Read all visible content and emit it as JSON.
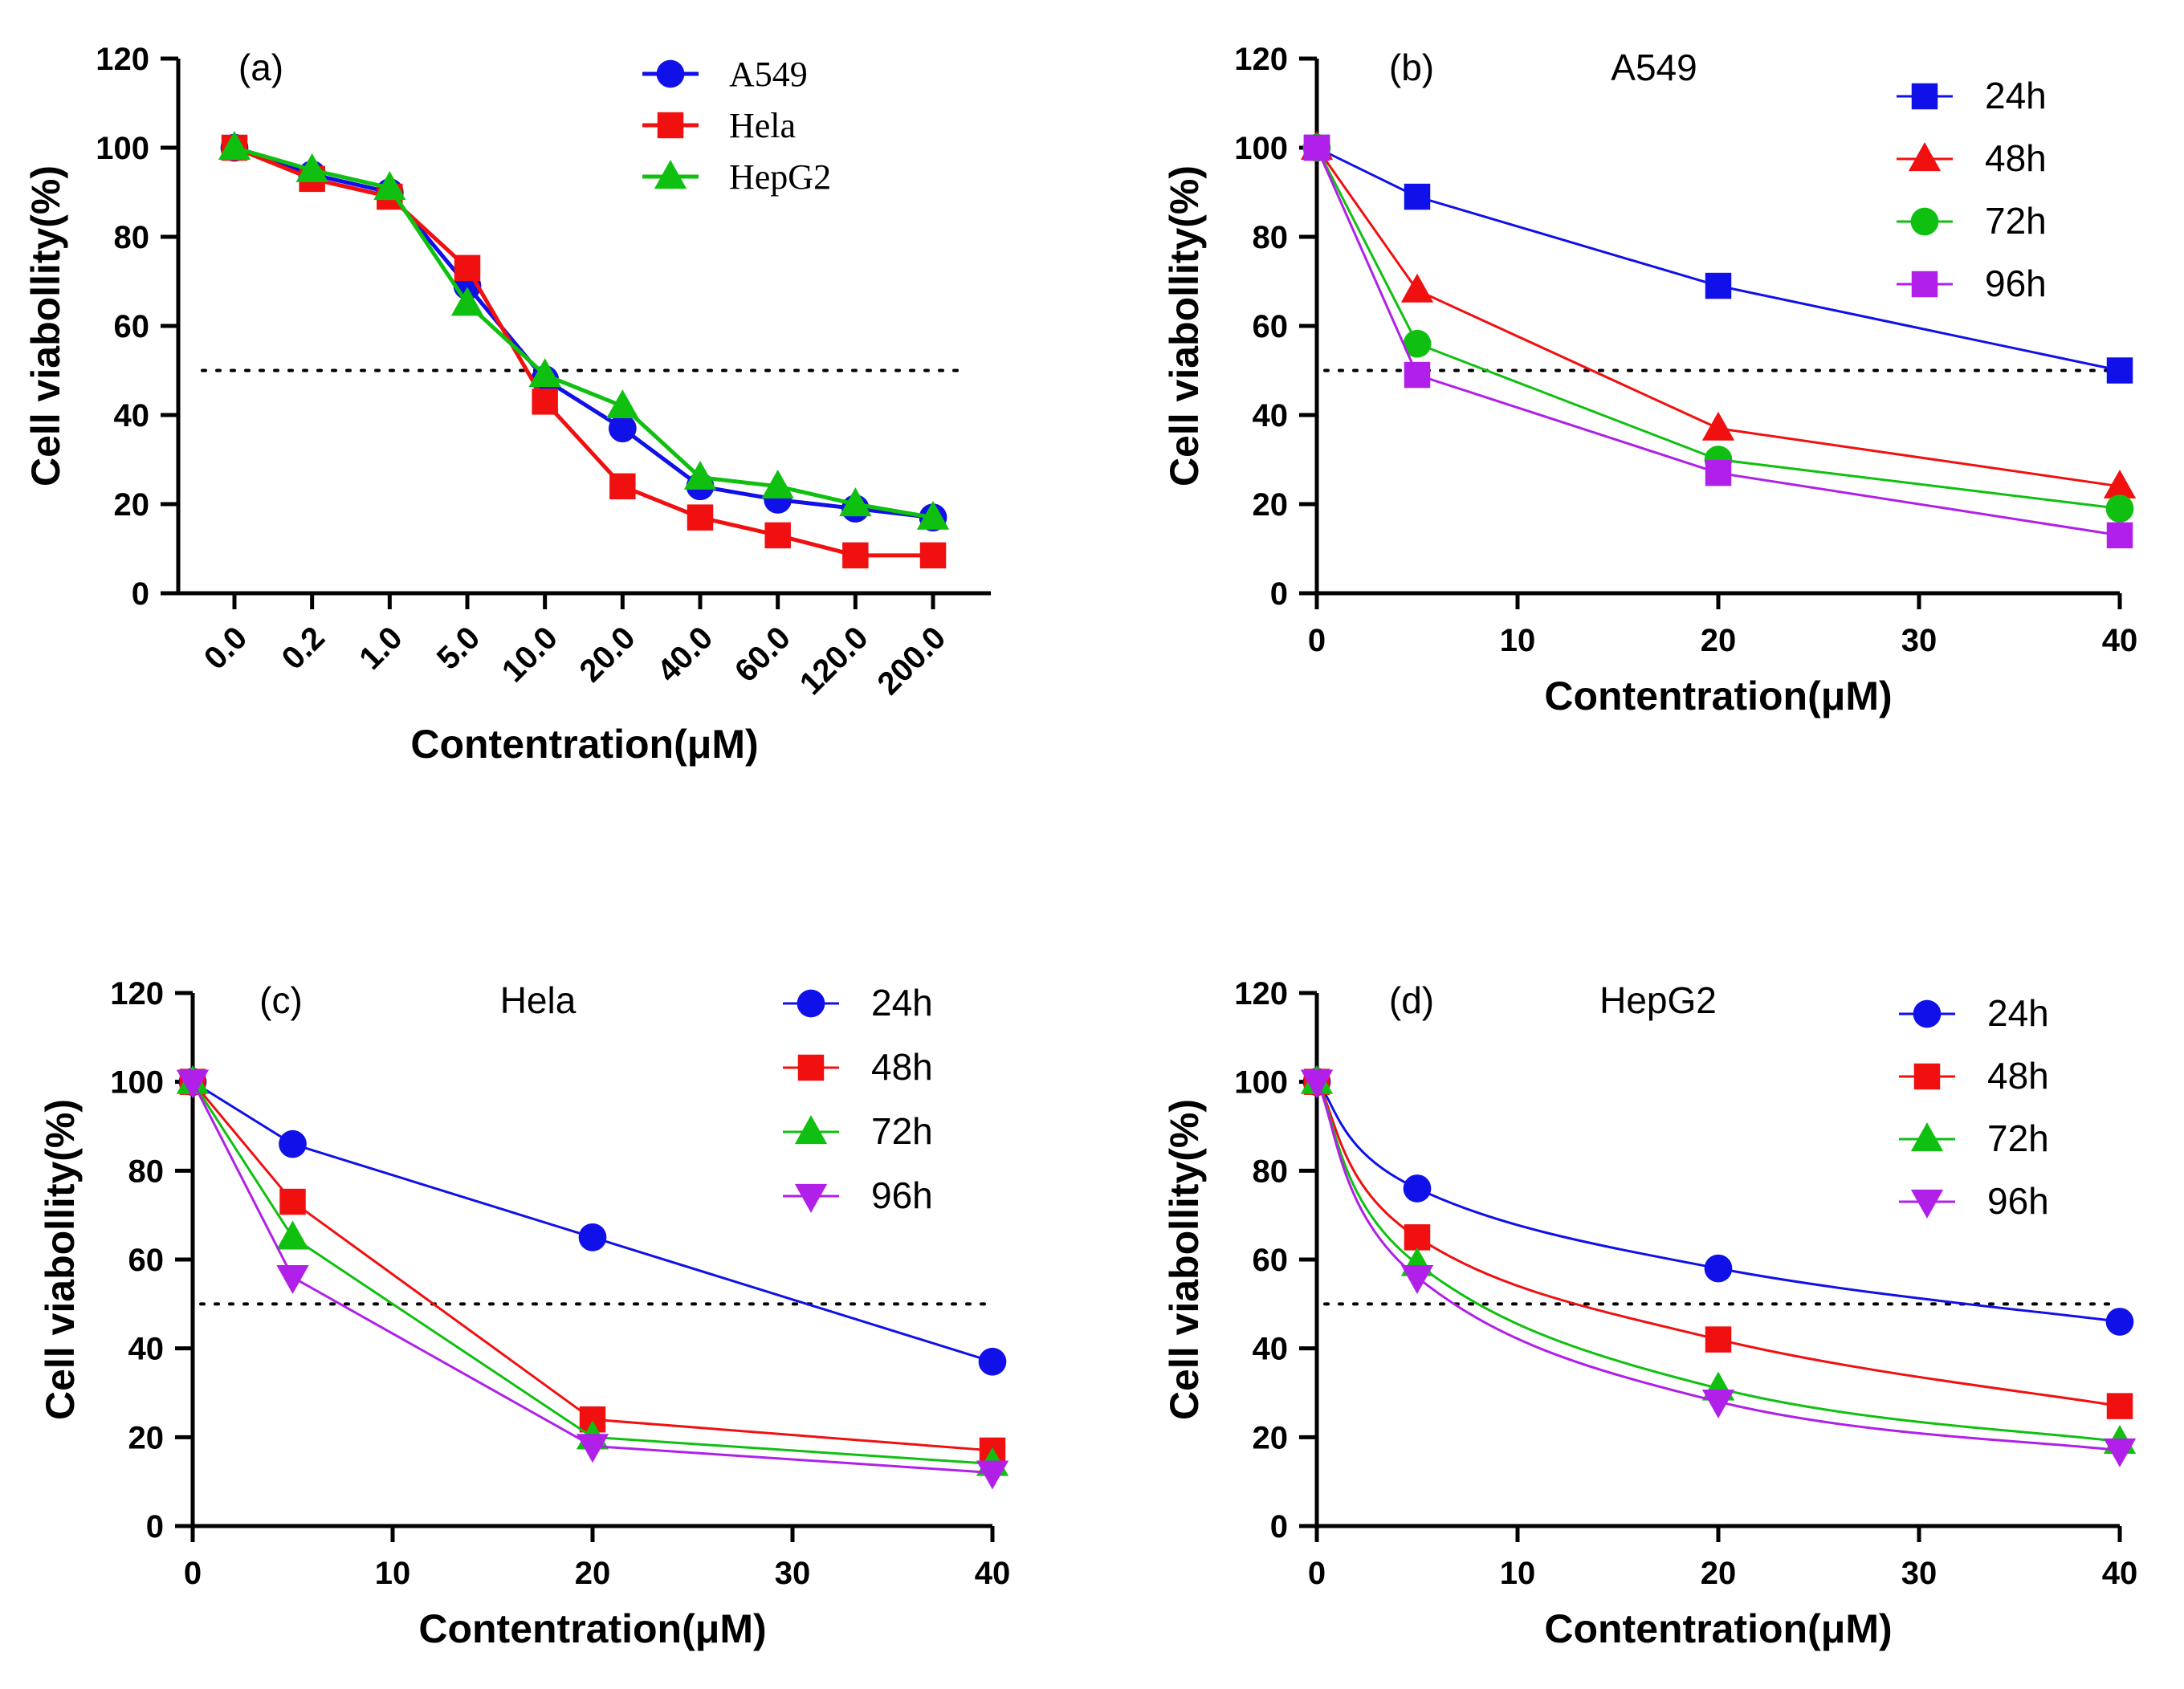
{
  "chart_data": [
    {
      "type": "line",
      "panel_label": "(a)",
      "title": "",
      "xlabel": "Contentration(μM)",
      "ylabel": "Cell viabollity(%)",
      "x_scale": "categorical",
      "categories": [
        "0.0",
        "0.2",
        "1.0",
        "5.0",
        "10.0",
        "20.0",
        "40.0",
        "60.0",
        "120.0",
        "200.0"
      ],
      "ylim": [
        0,
        120
      ],
      "yticks": [
        0,
        20,
        40,
        60,
        80,
        100,
        120
      ],
      "reference_line": 50,
      "legend_position": "top-right",
      "legend_font": "serif",
      "series": [
        {
          "name": "A549",
          "color": "#1010e8",
          "marker": "circle",
          "values": [
            100,
            94,
            90,
            69,
            48,
            37,
            24,
            21,
            19,
            17
          ]
        },
        {
          "name": "Hela",
          "color": "#f01010",
          "marker": "square",
          "values": [
            100,
            93,
            89,
            73,
            43,
            24,
            17,
            13,
            8.5,
            8.5
          ]
        },
        {
          "name": "HepG2",
          "color": "#10c010",
          "marker": "triangle-up",
          "values": [
            100,
            95,
            91,
            65,
            49,
            42,
            26,
            24,
            20,
            17
          ]
        }
      ]
    },
    {
      "type": "line",
      "panel_label": "(b)",
      "title": "A549",
      "xlabel": "Contentration(μM)",
      "ylabel": "Cell viabollity(%)",
      "x_scale": "linear",
      "xlim": [
        0,
        40
      ],
      "xticks": [
        0,
        10,
        20,
        30,
        40
      ],
      "ylim": [
        0,
        120
      ],
      "yticks": [
        0,
        20,
        40,
        60,
        80,
        100,
        120
      ],
      "reference_line": 50,
      "legend_position": "top-right",
      "legend_font": "sans",
      "x": [
        0,
        5,
        20,
        40
      ],
      "series": [
        {
          "name": "24h",
          "color": "#1010e8",
          "marker": "square",
          "values": [
            100,
            89,
            69,
            50
          ]
        },
        {
          "name": "48h",
          "color": "#f01010",
          "marker": "triangle-up",
          "values": [
            100,
            68,
            37,
            24
          ]
        },
        {
          "name": "72h",
          "color": "#10c010",
          "marker": "circle",
          "values": [
            100,
            56,
            30,
            19
          ]
        },
        {
          "name": "96h",
          "color": "#b020e8",
          "marker": "square",
          "values": [
            100,
            49,
            27,
            13
          ]
        }
      ]
    },
    {
      "type": "line",
      "panel_label": "(c)",
      "title": "Hela",
      "xlabel": "Contentration(μM)",
      "ylabel": "Cell viabollity(%)",
      "x_scale": "linear",
      "xlim": [
        0,
        40
      ],
      "xticks": [
        0,
        10,
        20,
        30,
        40
      ],
      "ylim": [
        0,
        120
      ],
      "yticks": [
        0,
        20,
        40,
        60,
        80,
        100,
        120
      ],
      "reference_line": 50,
      "legend_position": "top-right",
      "legend_font": "sans",
      "x": [
        0,
        5,
        20,
        40
      ],
      "series": [
        {
          "name": "24h",
          "color": "#1010e8",
          "marker": "circle",
          "values": [
            100,
            86,
            65,
            37
          ]
        },
        {
          "name": "48h",
          "color": "#f01010",
          "marker": "square",
          "values": [
            100,
            73,
            24,
            17
          ]
        },
        {
          "name": "72h",
          "color": "#10c010",
          "marker": "triangle-up",
          "values": [
            100,
            65,
            20,
            14
          ]
        },
        {
          "name": "96h",
          "color": "#b020e8",
          "marker": "triangle-down",
          "values": [
            100,
            56,
            18,
            12
          ]
        }
      ]
    },
    {
      "type": "line",
      "panel_label": "(d)",
      "title": "HepG2",
      "xlabel": "Contentration(μM)",
      "ylabel": "Cell viabollity(%)",
      "x_scale": "linear",
      "xlim": [
        0,
        40
      ],
      "xticks": [
        0,
        10,
        20,
        30,
        40
      ],
      "ylim": [
        0,
        120
      ],
      "yticks": [
        0,
        20,
        40,
        60,
        80,
        100,
        120
      ],
      "reference_line": 50,
      "legend_position": "top-right",
      "legend_font": "sans",
      "curve": "fitted",
      "x": [
        0,
        5,
        20,
        40
      ],
      "series": [
        {
          "name": "24h",
          "color": "#1010e8",
          "marker": "circle",
          "values": [
            100,
            76,
            58,
            46
          ]
        },
        {
          "name": "48h",
          "color": "#f01010",
          "marker": "square",
          "values": [
            100,
            65,
            42,
            27
          ]
        },
        {
          "name": "72h",
          "color": "#10c010",
          "marker": "triangle-up",
          "values": [
            100,
            59,
            31,
            19
          ]
        },
        {
          "name": "96h",
          "color": "#b020e8",
          "marker": "triangle-down",
          "values": [
            100,
            56,
            28,
            17
          ]
        }
      ]
    }
  ]
}
